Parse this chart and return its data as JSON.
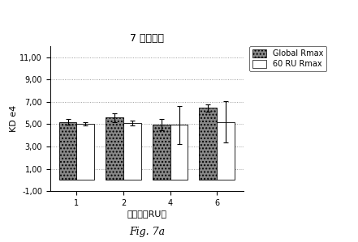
{
  "title": "7 データ点",
  "xlabel": "ノイズ（RU）",
  "ylabel": "KD e4",
  "fig_caption": "Fig. 7a",
  "categories": [
    "1",
    "2",
    "4",
    "6"
  ],
  "global_rmax_values": [
    5.2,
    5.6,
    4.95,
    6.45
  ],
  "global_rmax_errors": [
    0.25,
    0.4,
    0.5,
    0.3
  ],
  "ru60_rmax_values": [
    5.05,
    5.1,
    4.95,
    5.2
  ],
  "ru60_rmax_errors": [
    0.15,
    0.2,
    1.7,
    1.85
  ],
  "ylim": [
    -1.0,
    12.0
  ],
  "yticks": [
    -1.0,
    1.0,
    3.0,
    5.0,
    7.0,
    9.0,
    11.0
  ],
  "ytick_labels": [
    "-1,00",
    "1,00",
    "3,00",
    "5,00",
    "7,00",
    "9,00",
    "11,00"
  ],
  "bar_width": 0.38,
  "global_rmax_color": "#888888",
  "ru60_rmax_color": "#ffffff",
  "grid_color": "#888888",
  "legend_labels": [
    "Global Rmax",
    "60 RU Rmax"
  ],
  "background_color": "#ffffff",
  "title_fontsize": 9,
  "axis_label_fontsize": 8,
  "tick_fontsize": 7,
  "caption_fontsize": 9,
  "legend_fontsize": 7
}
